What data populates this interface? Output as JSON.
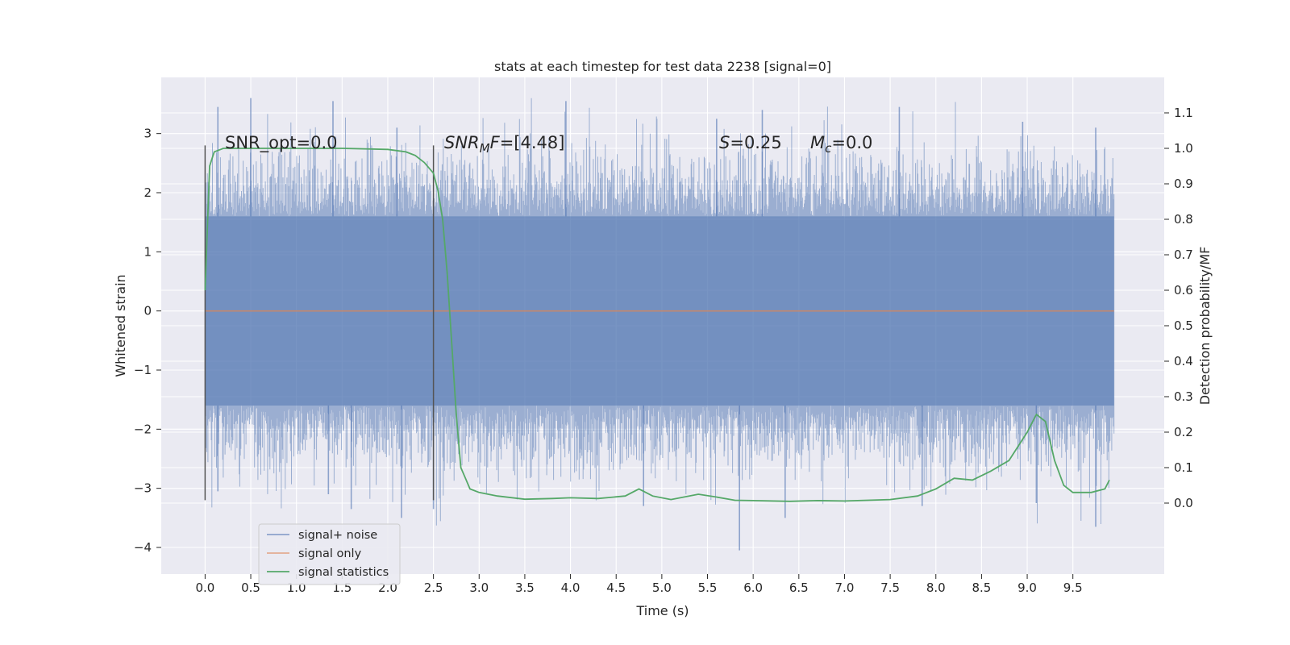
{
  "chart_data": {
    "type": "line",
    "title": "stats at each timestep for test data 2238 [signal=0]",
    "xlabel": "Time (s)",
    "ylabel": "Whitened strain",
    "ylabel_right": "Detection probability/MF",
    "xlim": [
      -0.48,
      10.5
    ],
    "ylim": [
      -4.45,
      3.95
    ],
    "ylim_right": [
      -0.2,
      1.2
    ],
    "x_ticks": [
      0.0,
      0.5,
      1.0,
      1.5,
      2.0,
      2.5,
      3.0,
      3.5,
      4.0,
      4.5,
      5.0,
      5.5,
      6.0,
      6.5,
      7.0,
      7.5,
      8.0,
      8.5,
      9.0,
      9.5
    ],
    "x_tick_labels": [
      "0.0",
      "0.5",
      "1.0",
      "1.5",
      "2.0",
      "2.5",
      "3.0",
      "3.5",
      "4.0",
      "4.5",
      "5.0",
      "5.5",
      "6.0",
      "6.5",
      "7.0",
      "7.5",
      "8.0",
      "8.5",
      "9.0",
      "9.5"
    ],
    "y_ticks": [
      3,
      2,
      1,
      0,
      -1,
      -2,
      -3,
      -4
    ],
    "y_tick_labels": [
      "3",
      "2",
      "1",
      "0",
      "−1",
      "−2",
      "−3",
      "−4"
    ],
    "y_right_ticks": [
      1.1,
      1.0,
      0.9,
      0.8,
      0.7,
      0.6,
      0.5,
      0.4,
      0.3,
      0.2,
      0.1,
      0.0
    ],
    "y_right_tick_labels": [
      "1.1",
      "1.0",
      "0.9",
      "0.8",
      "0.7",
      "0.6",
      "0.5",
      "0.4",
      "0.3",
      "0.2",
      "0.1",
      "0.0"
    ],
    "grid": true,
    "legend_position": "lower-left",
    "colors": {
      "background": "#eaeaf2",
      "grid": "#ffffff",
      "noise": "#4c72b0",
      "signal": "#dd8452",
      "stats": "#55a868",
      "marker": "#555555"
    },
    "series": [
      {
        "name": "signal+ noise",
        "axis": "left",
        "x_range": [
          0.0,
          9.95
        ],
        "envelope_inner": [
          -1.6,
          1.6
        ],
        "envelope_outer": [
          -4.05,
          3.6
        ],
        "peaks_x": [
          0.14,
          0.5,
          1.4,
          2.1,
          3.95,
          5.6,
          6.1,
          7.6,
          8.95,
          9.75
        ],
        "peaks_y": [
          3.45,
          3.6,
          3.55,
          3.1,
          3.55,
          3.25,
          3.4,
          3.45,
          3.2,
          3.1
        ],
        "troughs_x": [
          0.14,
          1.35,
          1.6,
          2.15,
          2.5,
          4.8,
          5.85,
          6.35,
          7.85,
          9.1,
          9.75
        ],
        "troughs_y": [
          -3.05,
          -3.1,
          -3.35,
          -3.5,
          -3.35,
          -3.3,
          -4.05,
          -3.5,
          -3.3,
          -3.25,
          -3.65
        ]
      },
      {
        "name": "signal only",
        "axis": "left",
        "x": [
          0.0,
          9.95
        ],
        "values": [
          0.0,
          0.0
        ]
      },
      {
        "name": "signal statistics",
        "axis": "right",
        "x": [
          0.0,
          0.05,
          0.1,
          0.15,
          0.2,
          0.4,
          1.0,
          1.5,
          2.0,
          2.2,
          2.3,
          2.4,
          2.5,
          2.55,
          2.6,
          2.65,
          2.7,
          2.75,
          2.8,
          2.85,
          2.9,
          3.0,
          3.2,
          3.5,
          3.8,
          4.0,
          4.3,
          4.6,
          4.75,
          4.9,
          5.1,
          5.4,
          5.6,
          5.8,
          6.0,
          6.4,
          6.7,
          7.0,
          7.5,
          7.8,
          8.0,
          8.2,
          8.4,
          8.6,
          8.8,
          9.0,
          9.1,
          9.2,
          9.3,
          9.4,
          9.5,
          9.7,
          9.85,
          9.9
        ],
        "values": [
          0.6,
          0.95,
          0.99,
          0.995,
          1.0,
          1.0,
          1.0,
          1.0,
          0.997,
          0.99,
          0.98,
          0.96,
          0.93,
          0.88,
          0.8,
          0.65,
          0.45,
          0.25,
          0.1,
          0.07,
          0.04,
          0.03,
          0.02,
          0.011,
          0.013,
          0.015,
          0.013,
          0.02,
          0.04,
          0.02,
          0.01,
          0.025,
          0.017,
          0.008,
          0.007,
          0.005,
          0.007,
          0.006,
          0.01,
          0.02,
          0.04,
          0.07,
          0.065,
          0.09,
          0.12,
          0.2,
          0.25,
          0.23,
          0.12,
          0.05,
          0.03,
          0.03,
          0.04,
          0.065
        ]
      }
    ],
    "vertical_markers": {
      "x": [
        0.0,
        2.5
      ],
      "y_range": [
        -3.2,
        2.8
      ]
    },
    "annotations": {
      "snr_opt": "SNR_opt=0.0",
      "snr_mf_prefix": "SNR",
      "snr_mf_sub": "M",
      "snr_mf_suffix": "F",
      "snr_mf_value": "=[4.48]",
      "s_symbol": "S",
      "s_value": "=0.25",
      "mc_symbol": "M",
      "mc_sub": "c",
      "mc_value": "=0.0"
    },
    "legend": [
      "signal+ noise",
      "signal only",
      "signal statistics"
    ]
  }
}
